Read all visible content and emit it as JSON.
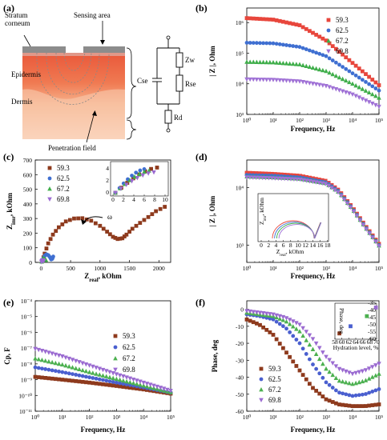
{
  "colors": {
    "s593": "#e8463c",
    "s625": "#3f6fd1",
    "s672": "#3fae4a",
    "s698": "#a072d6",
    "s593b": "#8e3a1d",
    "s625b": "#4a5fcf",
    "s672b": "#4cb050",
    "s698b": "#9b6bd1"
  },
  "panel_labels": [
    "(a)",
    "(b)",
    "(c)",
    "(d)",
    "(e)",
    "(f)"
  ],
  "diagram": {
    "stratum_corneum": "Stratum\ncorneum",
    "sensing_area": "Sensing area",
    "epidermis": "Epidermis",
    "dermis": "Dermis",
    "penetration_field": "Penetration field",
    "cse": "Cse",
    "zw": "Zw",
    "rse": "Rse",
    "rd": "Rd"
  },
  "chart_data": [
    {
      "id": "b",
      "type": "scatter",
      "xlabel": "Frequency, Hz",
      "ylabel": "| Z |, Ohm",
      "xscale": "log",
      "yscale": "log",
      "xlim": [
        1,
        100000
      ],
      "ylim": [
        1000,
        3000000
      ],
      "xticks": [
        "10⁰",
        "10¹",
        "10²",
        "10³",
        "10⁴",
        "10⁵"
      ],
      "yticks": [
        "10³",
        "10⁴",
        "10⁵",
        "10⁶"
      ],
      "legend": "top-right",
      "series": [
        {
          "name": "59.3",
          "color": "#e8463c",
          "x": [
            1,
            10,
            100,
            1000,
            10000,
            100000
          ],
          "y": [
            1400000,
            1250000,
            820000,
            260000,
            48000,
            9000
          ]
        },
        {
          "name": "62.5",
          "color": "#3f6fd1",
          "x": [
            1,
            10,
            100,
            1000,
            10000,
            100000
          ],
          "y": [
            220000,
            210000,
            160000,
            80000,
            22000,
            6000
          ]
        },
        {
          "name": "67.2",
          "color": "#3fae4a",
          "x": [
            1,
            10,
            100,
            1000,
            10000,
            100000
          ],
          "y": [
            52000,
            50000,
            43000,
            26000,
            10000,
            3500
          ]
        },
        {
          "name": "69.8",
          "color": "#a072d6",
          "x": [
            1,
            10,
            100,
            1000,
            10000,
            100000
          ],
          "y": [
            14000,
            13500,
            12000,
            8500,
            4500,
            1800
          ]
        }
      ]
    },
    {
      "id": "c",
      "type": "scatter",
      "xlabel": "Z_real, kOhm",
      "ylabel": "Z_imr, kOhm",
      "xlim": [
        -100,
        2200
      ],
      "ylim": [
        0,
        700
      ],
      "xticks": [
        "0",
        "500",
        "1000",
        "1500",
        "2000"
      ],
      "yticks": [
        "0",
        "100",
        "200",
        "300",
        "400",
        "500",
        "600",
        "700"
      ],
      "legend": "top-left",
      "annotation": "ω",
      "series": [
        {
          "name": "59.3",
          "color": "#8e3a1d",
          "x": [
            20,
            60,
            120,
            200,
            300,
            420,
            560,
            700,
            850,
            1000,
            1120,
            1220,
            1300,
            1380,
            1450,
            1550,
            1680,
            1820,
            1950,
            2100
          ],
          "y": [
            10,
            60,
            130,
            190,
            240,
            280,
            300,
            302,
            285,
            250,
            210,
            175,
            160,
            165,
            190,
            230,
            270,
            310,
            350,
            380
          ]
        },
        {
          "name": "62.5",
          "color": "#3f6fd1",
          "x": [
            15,
            35,
            60,
            90,
            120,
            150,
            170,
            190,
            205
          ],
          "y": [
            5,
            25,
            45,
            55,
            50,
            35,
            20,
            25,
            40
          ]
        },
        {
          "name": "67.2",
          "color": "#3fae4a",
          "x": [
            10,
            20,
            32,
            45,
            58,
            70,
            80
          ],
          "y": [
            5,
            15,
            25,
            28,
            22,
            15,
            18
          ]
        },
        {
          "name": "69.8",
          "color": "#9b6bd1",
          "x": [
            6,
            12,
            20,
            28,
            36,
            44
          ],
          "y": [
            3,
            8,
            13,
            15,
            12,
            10
          ]
        }
      ],
      "inset": {
        "xticks": [
          "0",
          "2",
          "4",
          "6",
          "8",
          "10"
        ],
        "yticks": [
          "0",
          "2",
          "4"
        ]
      }
    },
    {
      "id": "d",
      "type": "scatter",
      "xlabel": "Frequency, Hz",
      "ylabel": "| Z |, Ohm",
      "xscale": "log",
      "yscale": "log",
      "xlim": [
        1,
        100000
      ],
      "ylim": [
        500,
        30000
      ],
      "xticks": [
        "10⁰",
        "10¹",
        "10²",
        "10³",
        "10⁴",
        "10⁵"
      ],
      "yticks": [
        "10³",
        "10⁴"
      ],
      "series": [
        {
          "name": "59.3",
          "color": "#e8463c",
          "x": [
            1,
            10,
            100,
            1000,
            3000,
            10000,
            30000,
            100000
          ],
          "y": [
            18000,
            17200,
            16000,
            13000,
            9000,
            4500,
            2200,
            1050
          ]
        },
        {
          "name": "62.5",
          "color": "#3f6fd1",
          "x": [
            1,
            10,
            100,
            1000,
            3000,
            10000,
            30000,
            100000
          ],
          "y": [
            16500,
            16000,
            15000,
            12300,
            8600,
            4300,
            2100,
            1000
          ]
        },
        {
          "name": "67.2",
          "color": "#3fae4a",
          "x": [
            1,
            10,
            100,
            1000,
            3000,
            10000,
            30000,
            100000
          ],
          "y": [
            15500,
            15000,
            14200,
            11800,
            8300,
            4200,
            2050,
            980
          ]
        },
        {
          "name": "69.8",
          "color": "#a072d6",
          "x": [
            1,
            10,
            100,
            1000,
            3000,
            10000,
            30000,
            100000
          ],
          "y": [
            15000,
            14500,
            13800,
            11500,
            8100,
            4100,
            2000,
            960
          ]
        }
      ],
      "inset": {
        "xlabel": "Z_real, kOhm",
        "ylabel": "Z_imr, kOhm",
        "xticks": [
          "0",
          "2",
          "4",
          "6",
          "8",
          "10",
          "12",
          "14",
          "16",
          "18"
        ]
      }
    },
    {
      "id": "e",
      "type": "scatter",
      "xlabel": "Frequency, Hz",
      "ylabel": "Cp, F",
      "xscale": "log",
      "yscale": "log",
      "xlim": [
        1,
        100000
      ],
      "ylim": [
        1e-11,
        0.0001
      ],
      "xticks": [
        "10⁰",
        "10¹",
        "10²",
        "10³",
        "10⁴",
        "10⁵"
      ],
      "yticks": [
        "10⁻¹¹",
        "10⁻¹⁰",
        "10⁻⁹",
        "10⁻⁸",
        "10⁻⁷",
        "10⁻⁶",
        "10⁻⁵",
        "10⁻⁴"
      ],
      "legend": "right",
      "series": [
        {
          "name": "59.3",
          "color": "#8e3a1d",
          "x": [
            1,
            10,
            100,
            1000,
            10000,
            100000
          ],
          "y": [
            1.5e-09,
            1e-09,
            6.5e-10,
            4e-10,
            2.4e-10,
            1.3e-10
          ]
        },
        {
          "name": "62.5",
          "color": "#4a5fcf",
          "x": [
            1,
            10,
            100,
            1000,
            10000,
            100000
          ],
          "y": [
            6e-09,
            3e-09,
            1.4e-09,
            6.5e-10,
            3.2e-10,
            1.5e-10
          ]
        },
        {
          "name": "67.2",
          "color": "#4cb050",
          "x": [
            1,
            10,
            100,
            1000,
            10000,
            100000
          ],
          "y": [
            2.2e-08,
            9e-09,
            3e-09,
            1.1e-09,
            4.2e-10,
            1.6e-10
          ]
        },
        {
          "name": "69.8",
          "color": "#9b6bd1",
          "x": [
            1,
            10,
            100,
            1000,
            10000,
            100000
          ],
          "y": [
            9e-08,
            3e-08,
            8e-09,
            2.2e-09,
            6.5e-10,
            2e-10
          ]
        }
      ]
    },
    {
      "id": "f",
      "type": "scatter",
      "xlabel": "Frequency, Hz",
      "ylabel": "Phase, deg",
      "xscale": "log",
      "xlim": [
        1,
        100000
      ],
      "ylim": [
        -60,
        5
      ],
      "xticks": [
        "10⁰",
        "10¹",
        "10²",
        "10³",
        "10⁴",
        "10⁵"
      ],
      "yticks": [
        "-60",
        "-50",
        "-40",
        "-30",
        "-20",
        "-10",
        "0"
      ],
      "legend": "left",
      "series": [
        {
          "name": "59.3",
          "color": "#8e3a1d",
          "x": [
            1,
            3,
            10,
            30,
            100,
            300,
            1000,
            3000,
            10000,
            30000,
            100000
          ],
          "y": [
            -6,
            -9,
            -15,
            -25,
            -36,
            -46,
            -53,
            -56,
            -57,
            -57,
            -56
          ]
        },
        {
          "name": "62.5",
          "color": "#4a5fcf",
          "x": [
            1,
            3,
            10,
            30,
            100,
            300,
            1000,
            3000,
            10000,
            30000,
            100000
          ],
          "y": [
            -3,
            -4,
            -6,
            -11,
            -20,
            -32,
            -43,
            -49,
            -51,
            -50,
            -47
          ]
        },
        {
          "name": "67.2",
          "color": "#4cb050",
          "x": [
            1,
            3,
            10,
            30,
            100,
            300,
            1000,
            3000,
            10000,
            30000,
            100000
          ],
          "y": [
            -2,
            -3,
            -4,
            -7,
            -13,
            -23,
            -35,
            -42,
            -44,
            -42,
            -38
          ]
        },
        {
          "name": "69.8",
          "color": "#9b6bd1",
          "x": [
            1,
            3,
            10,
            30,
            100,
            300,
            1000,
            3000,
            10000,
            30000,
            100000
          ],
          "y": [
            -1,
            -2,
            -3,
            -5,
            -9,
            -17,
            -28,
            -35,
            -38,
            -36,
            -32
          ]
        }
      ],
      "inset": {
        "xlabel": "Hydration level, %",
        "ylabel": "Phase, deg",
        "x": [
          59.3,
          62.5,
          67.2,
          69.8
        ],
        "y": [
          -56,
          -51,
          -44,
          -38
        ],
        "xticks": [
          "58",
          "60",
          "62",
          "64",
          "66",
          "68",
          "70"
        ],
        "yticks": [
          "-60",
          "-55",
          "-50",
          "-45",
          "-40",
          "-35"
        ]
      }
    }
  ]
}
